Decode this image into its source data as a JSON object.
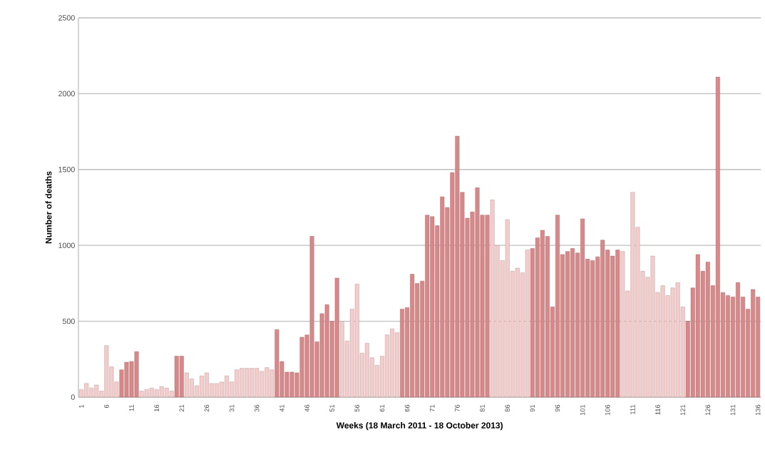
{
  "chart_data": {
    "type": "bar",
    "xlabel": "Weeks (18 March 2011 - 18 October 2013)",
    "ylabel": "Number of deaths",
    "categories": [
      "1",
      null,
      null,
      null,
      null,
      "6",
      null,
      null,
      null,
      null,
      "11",
      null,
      null,
      null,
      null,
      "16",
      null,
      null,
      null,
      null,
      "21",
      null,
      null,
      null,
      null,
      "26",
      null,
      null,
      null,
      null,
      "31",
      null,
      null,
      null,
      null,
      "36",
      null,
      null,
      null,
      null,
      "41",
      null,
      null,
      null,
      null,
      "46",
      null,
      null,
      null,
      null,
      "51",
      null,
      null,
      null,
      null,
      "56",
      null,
      null,
      null,
      null,
      "61",
      null,
      null,
      null,
      null,
      "66",
      null,
      null,
      null,
      null,
      "71",
      null,
      null,
      null,
      null,
      "76",
      null,
      null,
      null,
      null,
      "81",
      null,
      null,
      null,
      null,
      "86",
      null,
      null,
      null,
      null,
      "91",
      null,
      null,
      null,
      null,
      "96",
      null,
      null,
      null,
      null,
      "101",
      null,
      null,
      null,
      null,
      "106",
      null,
      null,
      null,
      null,
      "111",
      null,
      null,
      null,
      null,
      "116",
      null,
      null,
      null,
      null,
      "121",
      null,
      null,
      null,
      null,
      "126",
      null,
      null,
      null,
      null,
      "131",
      null,
      null,
      null,
      null,
      "136"
    ],
    "values": [
      50,
      90,
      60,
      80,
      40,
      340,
      200,
      100,
      180,
      230,
      235,
      300,
      40,
      50,
      60,
      50,
      70,
      60,
      40,
      270,
      270,
      160,
      120,
      75,
      140,
      160,
      90,
      90,
      100,
      140,
      100,
      180,
      190,
      190,
      190,
      190,
      170,
      195,
      180,
      445,
      235,
      165,
      165,
      160,
      395,
      410,
      1060,
      365,
      550,
      610,
      500,
      785,
      500,
      370,
      580,
      745,
      290,
      355,
      260,
      210,
      270,
      410,
      450,
      425,
      580,
      590,
      810,
      750,
      765,
      1200,
      1190,
      1130,
      1320,
      1250,
      1480,
      1720,
      1350,
      1180,
      1220,
      1380,
      1200,
      1200,
      1300,
      1000,
      900,
      1170,
      830,
      850,
      820,
      970,
      980,
      1050,
      1100,
      1060,
      595,
      1200,
      940,
      960,
      980,
      950,
      1175,
      910,
      900,
      925,
      1035,
      970,
      930,
      970,
      960,
      700,
      1350,
      1120,
      830,
      790,
      930,
      690,
      735,
      670,
      720,
      755,
      595,
      500,
      720,
      940,
      830,
      890,
      735,
      2110,
      690,
      670,
      660,
      755,
      660,
      580,
      710,
      660
    ],
    "colors": [
      "#f4cccc",
      "#f4cccc",
      "#f4cccc",
      "#f4cccc",
      "#f4cccc",
      "#f4cccc",
      "#f4cccc",
      "#f4cccc",
      "#d9888a",
      "#d9888a",
      "#d9888a",
      "#d9888a",
      "#f4cccc",
      "#f4cccc",
      "#f4cccc",
      "#f4cccc",
      "#f4cccc",
      "#f4cccc",
      "#f4cccc",
      "#d9888a",
      "#d9888a",
      "#f4cccc",
      "#f4cccc",
      "#f4cccc",
      "#f4cccc",
      "#f4cccc",
      "#f4cccc",
      "#f4cccc",
      "#f4cccc",
      "#f4cccc",
      "#f4cccc",
      "#f4cccc",
      "#f4cccc",
      "#f4cccc",
      "#f4cccc",
      "#f4cccc",
      "#f4cccc",
      "#f4cccc",
      "#f4cccc",
      "#d9888a",
      "#d9888a",
      "#d9888a",
      "#d9888a",
      "#d9888a",
      "#d9888a",
      "#d9888a",
      "#d9888a",
      "#d9888a",
      "#d9888a",
      "#d9888a",
      "#d9888a",
      "#d9888a",
      "#f4cccc",
      "#f4cccc",
      "#f4cccc",
      "#f4cccc",
      "#f4cccc",
      "#f4cccc",
      "#f4cccc",
      "#f4cccc",
      "#f4cccc",
      "#f4cccc",
      "#f4cccc",
      "#f4cccc",
      "#d9888a",
      "#d9888a",
      "#d9888a",
      "#d9888a",
      "#d9888a",
      "#d9888a",
      "#d9888a",
      "#d9888a",
      "#d9888a",
      "#d9888a",
      "#d9888a",
      "#d9888a",
      "#d9888a",
      "#d9888a",
      "#d9888a",
      "#d9888a",
      "#d9888a",
      "#d9888a",
      "#f4cccc",
      "#f4cccc",
      "#f4cccc",
      "#f4cccc",
      "#f4cccc",
      "#f4cccc",
      "#f4cccc",
      "#f4cccc",
      "#d9888a",
      "#d9888a",
      "#d9888a",
      "#d9888a",
      "#d9888a",
      "#d9888a",
      "#d9888a",
      "#d9888a",
      "#d9888a",
      "#d9888a",
      "#d9888a",
      "#d9888a",
      "#d9888a",
      "#d9888a",
      "#d9888a",
      "#d9888a",
      "#d9888a",
      "#d9888a",
      "#f4cccc",
      "#f4cccc",
      "#f4cccc",
      "#f4cccc",
      "#f4cccc",
      "#f4cccc",
      "#f4cccc",
      "#f4cccc",
      "#f4cccc",
      "#f4cccc",
      "#f4cccc",
      "#f4cccc",
      "#f4cccc",
      "#d9888a",
      "#d9888a",
      "#d9888a",
      "#d9888a",
      "#d9888a",
      "#d9888a",
      "#d9888a",
      "#d9888a",
      "#d9888a",
      "#d9888a",
      "#d9888a",
      "#d9888a",
      "#d9888a",
      "#d9888a",
      "#d9888a"
    ],
    "ylim": [
      0,
      2500
    ],
    "yticks": [
      0,
      500,
      1000,
      1500,
      2000,
      2500
    ],
    "grid": "y"
  }
}
